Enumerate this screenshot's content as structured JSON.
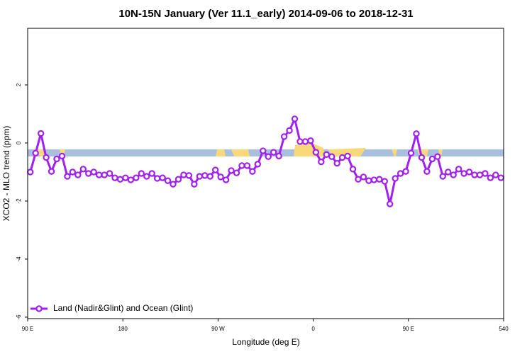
{
  "chart_data": {
    "type": "line",
    "title": "10N-15N January (Ver 11.1_early)   2014-09-06 to 2018-12-31",
    "x_label": "Longitude (deg E)",
    "y_label": "XCO2 - MLO trend (ppm)",
    "x": [
      92.5,
      97.5,
      102.5,
      107.5,
      112.5,
      117.5,
      122.5,
      127.5,
      132.5,
      137.5,
      142.5,
      147.5,
      152.5,
      157.5,
      162.5,
      167.5,
      172.5,
      177.5,
      182.5,
      187.5,
      192.5,
      197.5,
      202.5,
      207.5,
      212.5,
      217.5,
      222.5,
      227.5,
      232.5,
      237.5,
      242.5,
      247.5,
      252.5,
      257.5,
      262.5,
      267.5,
      272.5,
      277.5,
      282.5,
      287.5,
      292.5,
      297.5,
      302.5,
      307.5,
      312.5,
      317.5,
      322.5,
      327.5,
      332.5,
      337.5,
      342.5,
      347.5,
      352.5,
      357.5,
      362.5,
      367.5,
      372.5,
      377.5,
      382.5,
      387.5,
      392.5,
      397.5,
      402.5,
      407.5,
      412.5,
      417.5,
      422.5,
      427.5,
      432.5,
      437.5,
      442.5,
      447.5,
      452.5,
      457.5,
      462.5,
      467.5,
      472.5,
      477.5,
      482.5,
      487.5,
      492.5,
      497.5,
      502.5,
      507.5,
      512.5,
      517.5,
      522.5,
      527.5,
      532.5,
      537.5
    ],
    "series": [
      {
        "name": "Land (Nadir&Glint) and Ocean (Glint)",
        "color": "#a020f0",
        "values": [
          -1.0,
          -0.35,
          0.33,
          -0.5,
          -0.98,
          -0.55,
          -0.45,
          -1.15,
          -1.0,
          -1.1,
          -0.9,
          -1.05,
          -1.0,
          -1.1,
          -1.1,
          -1.05,
          -1.2,
          -1.25,
          -1.2,
          -1.27,
          -1.2,
          -1.05,
          -1.15,
          -1.05,
          -1.22,
          -1.2,
          -1.3,
          -1.42,
          -1.25,
          -1.1,
          -1.12,
          -1.42,
          -1.15,
          -1.12,
          -1.15,
          -0.93,
          -1.17,
          -1.27,
          -0.95,
          -1.03,
          -0.78,
          -0.78,
          -0.98,
          -0.73,
          -0.27,
          -0.47,
          -0.32,
          -0.45,
          0.22,
          0.43,
          0.83,
          0.05,
          0.05,
          0.08,
          -0.32,
          -0.65,
          -0.4,
          -0.47,
          -0.7,
          -0.5,
          -0.45,
          -0.9,
          -1.25,
          -1.17,
          -1.3,
          -1.27,
          -1.25,
          -1.32,
          -2.1,
          -1.22,
          -1.05,
          -0.98,
          -0.35,
          0.32,
          -0.5,
          -0.98,
          -0.55,
          -0.47,
          -1.15,
          -1.0,
          -1.1,
          -0.9,
          -1.05,
          -1.0,
          -1.1,
          -1.1,
          -1.05,
          -1.2,
          -1.1,
          -1.2
        ]
      }
    ],
    "xlim": [
      90,
      540
    ],
    "xticks": [
      {
        "value": 90,
        "label": "90 E"
      },
      180,
      {
        "value": 270,
        "label": "90 W"
      },
      {
        "value": 360,
        "label": "0"
      },
      {
        "value": 450,
        "label": "90 E"
      },
      540
    ],
    "ylim": [
      -6.05,
      3.95
    ],
    "yticks": [
      -6,
      -4,
      -2,
      0,
      2
    ],
    "legend": "bottom-left"
  }
}
